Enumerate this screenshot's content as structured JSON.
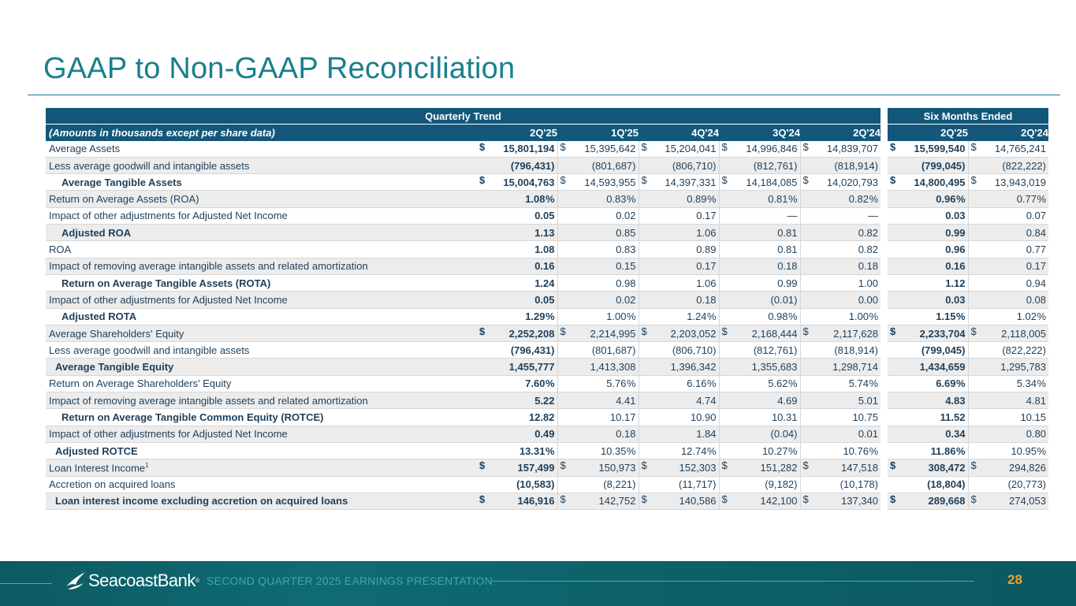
{
  "title": "GAAP to Non-GAAP Reconciliation",
  "table": {
    "group_headers": {
      "quarterly": "Quarterly Trend",
      "six_months": "Six Months Ended"
    },
    "label_header": "(Amounts in thousands except per share data)",
    "columns": [
      "2Q'25",
      "1Q'25",
      "4Q'24",
      "3Q'24",
      "2Q'24",
      "2Q'25",
      "2Q'24"
    ],
    "rows": [
      {
        "label": "Average Assets",
        "indent": 0,
        "bold": false,
        "shade": false,
        "cells": [
          {
            "d": "$",
            "v": "15,801,194"
          },
          {
            "d": "$",
            "v": "15,395,642"
          },
          {
            "d": "$",
            "v": "15,204,041"
          },
          {
            "d": "$",
            "v": "14,996,846"
          },
          {
            "d": "$",
            "v": "14,839,707"
          },
          {
            "d": "$",
            "v": "15,599,540"
          },
          {
            "d": "$",
            "v": "14,765,241"
          }
        ]
      },
      {
        "label": "Less average goodwill and intangible assets",
        "indent": 0,
        "bold": false,
        "shade": true,
        "cells": [
          {
            "v": "(796,431)"
          },
          {
            "v": "(801,687)"
          },
          {
            "v": "(806,710)"
          },
          {
            "v": "(812,761)"
          },
          {
            "v": "(818,914)"
          },
          {
            "v": "(799,045)"
          },
          {
            "v": "(822,222)"
          }
        ]
      },
      {
        "label": "Average Tangible Assets",
        "indent": 2,
        "bold": true,
        "shade": false,
        "cells": [
          {
            "d": "$",
            "v": "15,004,763"
          },
          {
            "d": "$",
            "v": "14,593,955"
          },
          {
            "d": "$",
            "v": "14,397,331"
          },
          {
            "d": "$",
            "v": "14,184,085"
          },
          {
            "d": "$",
            "v": "14,020,793"
          },
          {
            "d": "$",
            "v": "14,800,495"
          },
          {
            "d": "$",
            "v": "13,943,019"
          }
        ]
      },
      {
        "label": "Return on Average Assets (ROA)",
        "indent": 0,
        "bold": false,
        "shade": true,
        "cells": [
          {
            "v": "1.08",
            "p": "%"
          },
          {
            "v": "0.83",
            "p": "%"
          },
          {
            "v": "0.89",
            "p": "%"
          },
          {
            "v": "0.81",
            "p": "%"
          },
          {
            "v": "0.82",
            "p": "%"
          },
          {
            "v": "0.96",
            "p": "%"
          },
          {
            "v": "0.77",
            "p": "%"
          }
        ]
      },
      {
        "label": "Impact of other adjustments for Adjusted Net Income",
        "indent": 0,
        "bold": false,
        "shade": false,
        "cells": [
          {
            "v": "0.05"
          },
          {
            "v": "0.02"
          },
          {
            "v": "0.17"
          },
          {
            "v": "—"
          },
          {
            "v": "—"
          },
          {
            "v": "0.03"
          },
          {
            "v": "0.07"
          }
        ]
      },
      {
        "label": "Adjusted ROA",
        "indent": 2,
        "bold": true,
        "shade": true,
        "cells": [
          {
            "v": "1.13"
          },
          {
            "v": "0.85"
          },
          {
            "v": "1.06"
          },
          {
            "v": "0.81"
          },
          {
            "v": "0.82"
          },
          {
            "v": "0.99"
          },
          {
            "v": "0.84"
          }
        ]
      },
      {
        "label": "ROA",
        "indent": 0,
        "bold": false,
        "shade": false,
        "cells": [
          {
            "v": "1.08"
          },
          {
            "v": "0.83"
          },
          {
            "v": "0.89"
          },
          {
            "v": "0.81"
          },
          {
            "v": "0.82"
          },
          {
            "v": "0.96"
          },
          {
            "v": "0.77"
          }
        ]
      },
      {
        "label": "Impact of removing average intangible assets and related amortization",
        "indent": 0,
        "bold": false,
        "shade": true,
        "cells": [
          {
            "v": "0.16"
          },
          {
            "v": "0.15"
          },
          {
            "v": "0.17"
          },
          {
            "v": "0.18"
          },
          {
            "v": "0.18"
          },
          {
            "v": "0.16"
          },
          {
            "v": "0.17"
          }
        ]
      },
      {
        "label": "Return on Average Tangible Assets (ROTA)",
        "indent": 2,
        "bold": true,
        "shade": false,
        "cells": [
          {
            "v": "1.24"
          },
          {
            "v": "0.98"
          },
          {
            "v": "1.06"
          },
          {
            "v": "0.99"
          },
          {
            "v": "1.00"
          },
          {
            "v": "1.12"
          },
          {
            "v": "0.94"
          }
        ]
      },
      {
        "label": "Impact of other adjustments for Adjusted Net Income",
        "indent": 0,
        "bold": false,
        "shade": true,
        "cells": [
          {
            "v": "0.05"
          },
          {
            "v": "0.02"
          },
          {
            "v": "0.18"
          },
          {
            "v": "(0.01)"
          },
          {
            "v": "0.00"
          },
          {
            "v": "0.03"
          },
          {
            "v": "0.08"
          }
        ]
      },
      {
        "label": "Adjusted ROTA",
        "indent": 2,
        "bold": true,
        "shade": false,
        "cells": [
          {
            "v": "1.29",
            "p": "%"
          },
          {
            "v": "1.00",
            "p": "%"
          },
          {
            "v": "1.24",
            "p": "%"
          },
          {
            "v": "0.98",
            "p": "%"
          },
          {
            "v": "1.00",
            "p": "%"
          },
          {
            "v": "1.15",
            "p": "%"
          },
          {
            "v": "1.02",
            "p": "%"
          }
        ]
      },
      {
        "label": "Average Shareholders' Equity",
        "indent": 0,
        "bold": false,
        "shade": true,
        "cells": [
          {
            "d": "$",
            "v": "2,252,208"
          },
          {
            "d": "$",
            "v": "2,214,995"
          },
          {
            "d": "$",
            "v": "2,203,052"
          },
          {
            "d": "$",
            "v": "2,168,444"
          },
          {
            "d": "$",
            "v": "2,117,628"
          },
          {
            "d": "$",
            "v": "2,233,704"
          },
          {
            "d": "$",
            "v": "2,118,005"
          }
        ]
      },
      {
        "label": "Less average goodwill and intangible assets",
        "indent": 0,
        "bold": false,
        "shade": false,
        "cells": [
          {
            "v": "(796,431)"
          },
          {
            "v": "(801,687)"
          },
          {
            "v": "(806,710)"
          },
          {
            "v": "(812,761)"
          },
          {
            "v": "(818,914)"
          },
          {
            "v": "(799,045)"
          },
          {
            "v": "(822,222)"
          }
        ]
      },
      {
        "label": "Average Tangible Equity",
        "indent": 1,
        "bold": true,
        "shade": true,
        "cells": [
          {
            "v": "1,455,777"
          },
          {
            "v": "1,413,308"
          },
          {
            "v": "1,396,342"
          },
          {
            "v": "1,355,683"
          },
          {
            "v": "1,298,714"
          },
          {
            "v": "1,434,659"
          },
          {
            "v": "1,295,783"
          }
        ]
      },
      {
        "label": "Return on Average Shareholders' Equity",
        "indent": 0,
        "bold": false,
        "shade": false,
        "cells": [
          {
            "v": "7.60",
            "p": "%"
          },
          {
            "v": "5.76",
            "p": "%"
          },
          {
            "v": "6.16",
            "p": "%"
          },
          {
            "v": "5.62",
            "p": "%"
          },
          {
            "v": "5.74",
            "p": "%"
          },
          {
            "v": "6.69",
            "p": "%"
          },
          {
            "v": "5.34",
            "p": "%"
          }
        ]
      },
      {
        "label": "Impact of removing average intangible assets and related amortization",
        "indent": 0,
        "bold": false,
        "shade": true,
        "cells": [
          {
            "v": "5.22"
          },
          {
            "v": "4.41"
          },
          {
            "v": "4.74"
          },
          {
            "v": "4.69"
          },
          {
            "v": "5.01"
          },
          {
            "v": "4.83"
          },
          {
            "v": "4.81"
          }
        ]
      },
      {
        "label": "Return on Average Tangible Common Equity (ROTCE)",
        "indent": 2,
        "bold": true,
        "shade": false,
        "cells": [
          {
            "v": "12.82"
          },
          {
            "v": "10.17"
          },
          {
            "v": "10.90"
          },
          {
            "v": "10.31"
          },
          {
            "v": "10.75"
          },
          {
            "v": "11.52"
          },
          {
            "v": "10.15"
          }
        ]
      },
      {
        "label": "Impact of other adjustments for Adjusted Net Income",
        "indent": 0,
        "bold": false,
        "shade": true,
        "cells": [
          {
            "v": "0.49"
          },
          {
            "v": "0.18"
          },
          {
            "v": "1.84"
          },
          {
            "v": "(0.04)"
          },
          {
            "v": "0.01"
          },
          {
            "v": "0.34"
          },
          {
            "v": "0.80"
          }
        ]
      },
      {
        "label": "Adjusted ROTCE",
        "indent": 1,
        "bold": true,
        "shade": false,
        "cells": [
          {
            "v": "13.31",
            "p": "%"
          },
          {
            "v": "10.35",
            "p": "%"
          },
          {
            "v": "12.74",
            "p": "%"
          },
          {
            "v": "10.27",
            "p": "%"
          },
          {
            "v": "10.76",
            "p": "%"
          },
          {
            "v": "11.86",
            "p": "%"
          },
          {
            "v": "10.95",
            "p": "%"
          }
        ]
      },
      {
        "label": "Loan Interest Income",
        "sup": "1",
        "indent": 0,
        "bold": false,
        "shade": true,
        "cells": [
          {
            "d": "$",
            "v": "157,499"
          },
          {
            "d": "$",
            "v": "150,973"
          },
          {
            "d": "$",
            "v": "152,303"
          },
          {
            "d": "$",
            "v": "151,282"
          },
          {
            "d": "$",
            "v": "147,518"
          },
          {
            "d": "$",
            "v": "308,472"
          },
          {
            "d": "$",
            "v": "294,826"
          }
        ]
      },
      {
        "label": "Accretion on acquired loans",
        "indent": 0,
        "bold": false,
        "shade": false,
        "cells": [
          {
            "v": "(10,583)"
          },
          {
            "v": "(8,221)"
          },
          {
            "v": "(11,717)"
          },
          {
            "v": "(9,182)"
          },
          {
            "v": "(10,178)"
          },
          {
            "v": "(18,804)"
          },
          {
            "v": "(20,773)"
          }
        ]
      },
      {
        "label": "Loan interest income excluding accretion on acquired loans",
        "indent": 1,
        "bold": true,
        "shade": true,
        "cells": [
          {
            "d": "$",
            "v": "146,916"
          },
          {
            "d": "$",
            "v": "142,752"
          },
          {
            "d": "$",
            "v": "140,586"
          },
          {
            "d": "$",
            "v": "142,100"
          },
          {
            "d": "$",
            "v": "137,340"
          },
          {
            "d": "$",
            "v": "289,668"
          },
          {
            "d": "$",
            "v": "274,053"
          }
        ]
      }
    ]
  },
  "footer": {
    "logo_text": "SeacoastBank",
    "logo_mark": "®",
    "logo_icon": "bird-wave-icon",
    "caption": "SECOND QUARTER 2025 EARNINGS PRESENTATION",
    "page_number": "28"
  },
  "colors": {
    "title": "#1a7f8c",
    "header_bg": "#13587a",
    "page_number": "#f0a030",
    "footer_bg": "#0f6b73"
  }
}
